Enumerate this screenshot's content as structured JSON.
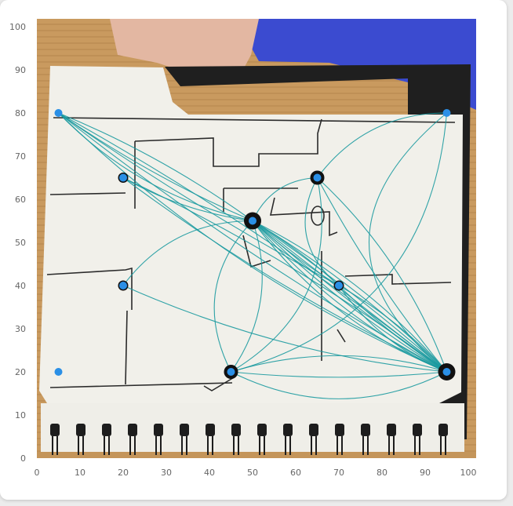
{
  "chart_data": {
    "type": "scatter",
    "title": "",
    "xlabel": "",
    "ylabel": "",
    "xlim": [
      0,
      100
    ],
    "ylim": [
      0,
      100
    ],
    "xticks": [
      "0",
      "10",
      "20",
      "30",
      "40",
      "50",
      "60",
      "70",
      "80",
      "90",
      "100"
    ],
    "yticks": [
      "0",
      "10",
      "20",
      "30",
      "40",
      "50",
      "60",
      "70",
      "80",
      "90",
      "100"
    ],
    "grid": false,
    "background": "photo of a hand holding a spiral notebook page with a hand-drawn floor plan",
    "colors": {
      "point": "#2a8fe6",
      "ring": "#111111",
      "edge": "#1b9aa0"
    },
    "points": [
      {
        "x": 5,
        "y": 80,
        "ring": 0
      },
      {
        "x": 95,
        "y": 80,
        "ring": 0
      },
      {
        "x": 20,
        "y": 65,
        "ring": 1
      },
      {
        "x": 65,
        "y": 65,
        "ring": 2
      },
      {
        "x": 50,
        "y": 55,
        "ring": 3
      },
      {
        "x": 20,
        "y": 40,
        "ring": 1
      },
      {
        "x": 70,
        "y": 40,
        "ring": 1
      },
      {
        "x": 5,
        "y": 20,
        "ring": 0
      },
      {
        "x": 45,
        "y": 20,
        "ring": 2
      },
      {
        "x": 95,
        "y": 20,
        "ring": 3
      }
    ],
    "edges": [
      [
        5,
        80,
        95,
        20,
        0.04
      ],
      [
        5,
        80,
        95,
        20,
        -0.04
      ],
      [
        5,
        80,
        95,
        20,
        0.09
      ],
      [
        5,
        80,
        50,
        55,
        0.05
      ],
      [
        5,
        80,
        50,
        55,
        -0.06
      ],
      [
        5,
        80,
        50,
        55,
        0.15
      ],
      [
        5,
        80,
        70,
        40,
        0.03
      ],
      [
        20,
        65,
        95,
        20,
        0.05
      ],
      [
        20,
        65,
        95,
        20,
        -0.05
      ],
      [
        20,
        65,
        50,
        55,
        0.1
      ],
      [
        20,
        40,
        50,
        55,
        -0.25
      ],
      [
        20,
        40,
        95,
        20,
        0.08
      ],
      [
        50,
        55,
        95,
        20,
        0.0
      ],
      [
        50,
        55,
        95,
        20,
        0.03
      ],
      [
        50,
        55,
        95,
        20,
        -0.03
      ],
      [
        50,
        55,
        95,
        20,
        0.06
      ],
      [
        50,
        55,
        95,
        20,
        -0.06
      ],
      [
        50,
        55,
        95,
        20,
        0.1
      ],
      [
        50,
        55,
        95,
        20,
        -0.1
      ],
      [
        50,
        55,
        95,
        20,
        0.14
      ],
      [
        50,
        55,
        70,
        40,
        0.05
      ],
      [
        50,
        55,
        70,
        40,
        -0.05
      ],
      [
        65,
        65,
        95,
        20,
        0.05
      ],
      [
        65,
        65,
        95,
        20,
        -0.12
      ],
      [
        65,
        65,
        50,
        55,
        0.3
      ],
      [
        65,
        65,
        45,
        20,
        -0.35
      ],
      [
        65,
        65,
        70,
        40,
        0.4
      ],
      [
        45,
        20,
        50,
        55,
        -0.35
      ],
      [
        45,
        20,
        50,
        55,
        0.25
      ],
      [
        45,
        20,
        95,
        20,
        0.05
      ],
      [
        45,
        20,
        95,
        20,
        -0.15
      ],
      [
        45,
        20,
        95,
        20,
        0.25
      ],
      [
        70,
        40,
        95,
        20,
        0.05
      ],
      [
        70,
        40,
        95,
        20,
        -0.08
      ],
      [
        70,
        40,
        95,
        20,
        0.15
      ],
      [
        95,
        80,
        95,
        20,
        0.6
      ],
      [
        95,
        80,
        65,
        65,
        0.25
      ],
      [
        95,
        80,
        45,
        20,
        -0.35
      ]
    ]
  }
}
